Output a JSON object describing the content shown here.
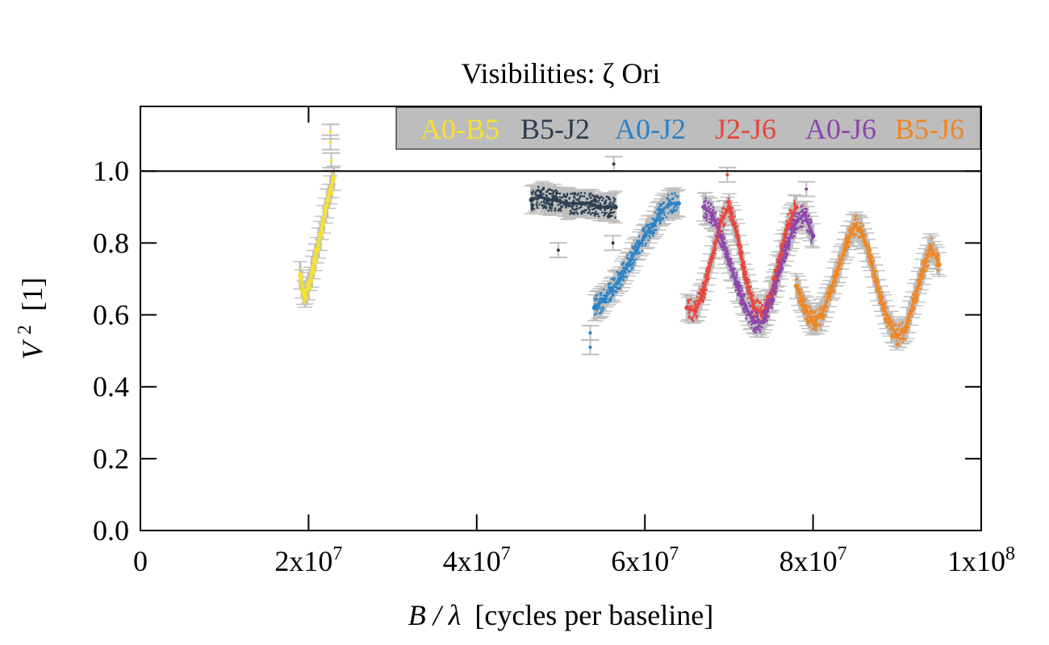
{
  "chart_data": {
    "type": "scatter",
    "title": "Visibilities: ζ Ori",
    "xlabel": "B / λ [cycles per baseline]",
    "xlabel_var": "B / λ",
    "xlabel_unit": "[cycles per baseline]",
    "ylabel": "V² [1]",
    "ylabel_var": "V",
    "ylabel_sup": "2",
    "ylabel_unit": "[1]",
    "xlim": [
      0,
      100000000
    ],
    "ylim": [
      0,
      1.18
    ],
    "reference_line_y": 1.0,
    "legend_placement": "top-right",
    "legend_background": "#bdbdbd",
    "errorbar_color": "#bfbfbf",
    "yticks": [
      {
        "value": 0.0,
        "label": "0.0"
      },
      {
        "value": 0.2,
        "label": "0.2"
      },
      {
        "value": 0.4,
        "label": "0.4"
      },
      {
        "value": 0.6,
        "label": "0.6"
      },
      {
        "value": 0.8,
        "label": "0.8"
      },
      {
        "value": 1.0,
        "label": "1.0"
      }
    ],
    "xticks": [
      {
        "value": 0,
        "base": "0",
        "exp": ""
      },
      {
        "value": 20000000,
        "base": "2x10",
        "exp": "7"
      },
      {
        "value": 40000000,
        "base": "4x10",
        "exp": "7"
      },
      {
        "value": 60000000,
        "base": "6x10",
        "exp": "7"
      },
      {
        "value": 80000000,
        "base": "8x10",
        "exp": "7"
      },
      {
        "value": 100000000,
        "base": "1x10",
        "exp": "8"
      }
    ],
    "series": [
      {
        "name": "A0-B5",
        "color": "#f7e22e",
        "x": [
          19000000,
          19500000,
          20000000,
          20500000,
          21000000,
          21500000,
          22000000,
          22500000,
          23000000
        ],
        "y": [
          0.71,
          0.65,
          0.68,
          0.73,
          0.78,
          0.83,
          0.89,
          0.94,
          0.98
        ]
      },
      {
        "name": "B5-J2",
        "color": "#2c3e50",
        "x": [
          46500000,
          47500000,
          48500000,
          49500000,
          50500000,
          51500000,
          52500000,
          53500000,
          54500000,
          55500000,
          56500000
        ],
        "y": [
          0.92,
          0.93,
          0.92,
          0.92,
          0.91,
          0.91,
          0.91,
          0.91,
          0.9,
          0.9,
          0.9
        ]
      },
      {
        "name": "A0-J2",
        "color": "#2a83c8",
        "x": [
          54000000,
          55000000,
          56000000,
          57000000,
          58000000,
          59000000,
          60000000,
          61000000,
          62000000,
          63000000,
          64000000
        ],
        "y": [
          0.62,
          0.64,
          0.67,
          0.7,
          0.74,
          0.78,
          0.82,
          0.85,
          0.89,
          0.91,
          0.91
        ]
      },
      {
        "name": "J2-J6",
        "color": "#e8453c",
        "x": [
          65000000,
          66000000,
          67000000,
          68000000,
          69000000,
          70000000,
          71000000,
          72000000,
          73000000,
          74000000,
          75000000,
          76000000,
          77000000,
          78000000
        ],
        "y": [
          0.62,
          0.61,
          0.67,
          0.76,
          0.86,
          0.9,
          0.82,
          0.7,
          0.62,
          0.6,
          0.66,
          0.75,
          0.85,
          0.9
        ]
      },
      {
        "name": "A0-J6",
        "color": "#8e44ad",
        "x": [
          67000000,
          68000000,
          69000000,
          70000000,
          71000000,
          72000000,
          73000000,
          74000000,
          75000000,
          76000000,
          77000000,
          78000000,
          79000000,
          80000000
        ],
        "y": [
          0.9,
          0.88,
          0.82,
          0.75,
          0.68,
          0.62,
          0.58,
          0.58,
          0.64,
          0.72,
          0.8,
          0.86,
          0.88,
          0.82
        ]
      },
      {
        "name": "B5-J6",
        "color": "#ef8622",
        "x": [
          78000000,
          79000000,
          80000000,
          81000000,
          82000000,
          83000000,
          84000000,
          85000000,
          86000000,
          87000000,
          88000000,
          89000000,
          90000000,
          91000000,
          92000000,
          93000000,
          94000000,
          95000000
        ],
        "y": [
          0.68,
          0.62,
          0.58,
          0.6,
          0.66,
          0.73,
          0.8,
          0.85,
          0.82,
          0.74,
          0.65,
          0.58,
          0.54,
          0.56,
          0.64,
          0.72,
          0.79,
          0.74
        ]
      }
    ],
    "outliers": [
      {
        "series": "A0-B5",
        "x": 22600000,
        "y": 1.11
      },
      {
        "series": "A0-B5",
        "x": 22600000,
        "y": 1.08
      },
      {
        "series": "A0-B5",
        "x": 22700000,
        "y": 1.03
      },
      {
        "series": "B5-J2",
        "x": 49700000,
        "y": 0.78
      },
      {
        "series": "B5-J2",
        "x": 56300000,
        "y": 1.02
      },
      {
        "series": "B5-J2",
        "x": 56200000,
        "y": 0.8
      },
      {
        "series": "A0-J2",
        "x": 53500000,
        "y": 0.55
      },
      {
        "series": "A0-J2",
        "x": 53500000,
        "y": 0.51
      },
      {
        "series": "J2-J6",
        "x": 69800000,
        "y": 0.99
      },
      {
        "series": "A0-J6",
        "x": 79200000,
        "y": 0.95
      }
    ]
  }
}
